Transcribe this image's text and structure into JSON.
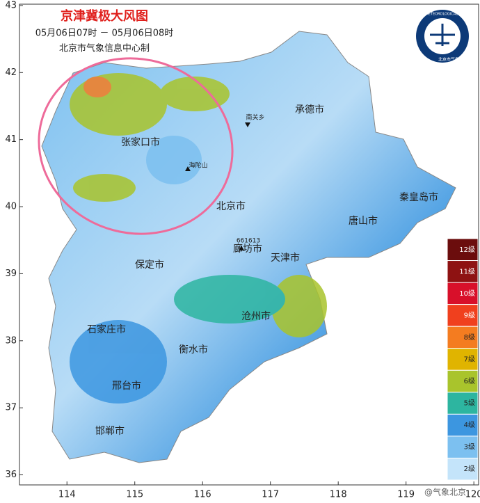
{
  "map": {
    "title": "京津冀极大风图",
    "subtitle": "05月06日07时 － 05月06日08时",
    "producer": "北京市气象信息中心制",
    "logo_text": "北京市气象局",
    "logo_ring": "BEIJING METEOROLOGICAL SERVICE",
    "watermark": "@气象北京",
    "xlim": [
      113.3,
      120.07
    ],
    "ylim": [
      35.85,
      43.02
    ],
    "xticks": [
      114,
      115,
      116,
      117,
      118,
      119,
      120
    ],
    "yticks": [
      36,
      37,
      38,
      39,
      40,
      41,
      42,
      43
    ],
    "cities": [
      "承德市",
      "张家口市",
      "北京市",
      "秦皇岛市",
      "唐山市",
      "廊坊市",
      "天津市",
      "保定市",
      "沧州市",
      "石家庄市",
      "衡水市",
      "邢台市",
      "邯郸市"
    ],
    "stations": [
      "南关乡",
      "海陀山",
      "661613"
    ],
    "legend": [
      {
        "label": "12级",
        "color": "#6b0d0d"
      },
      {
        "label": "11级",
        "color": "#8e1212"
      },
      {
        "label": "10级",
        "color": "#d8102a"
      },
      {
        "label": "9级",
        "color": "#f0401e"
      },
      {
        "label": "8级",
        "color": "#f47c20"
      },
      {
        "label": "7级",
        "color": "#e0b400"
      },
      {
        "label": "6级",
        "color": "#a9c42c"
      },
      {
        "label": "5级",
        "color": "#2db5a0"
      },
      {
        "label": "4级",
        "color": "#3c96e0"
      },
      {
        "label": "3级",
        "color": "#7cc0f0"
      },
      {
        "label": "2级",
        "color": "#c4e4fa"
      }
    ]
  }
}
